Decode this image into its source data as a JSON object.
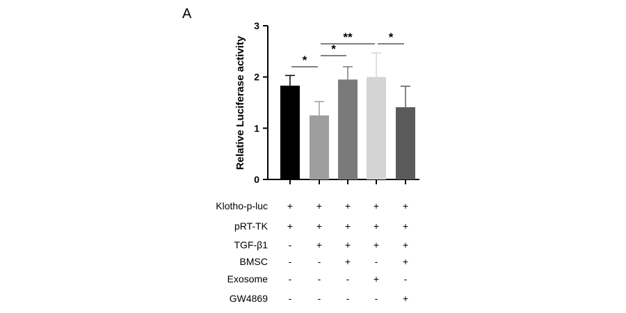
{
  "panel_label": "A",
  "chart_data": {
    "type": "bar",
    "title": "",
    "ylabel": "Relative Luciferase activity",
    "xlabel": "",
    "ylim": [
      0,
      3
    ],
    "yticks": [
      "0",
      "1",
      "2",
      "3"
    ],
    "grid": false,
    "values": [
      1.83,
      1.25,
      1.95,
      2.0,
      1.41
    ],
    "errors": [
      0.2,
      0.27,
      0.25,
      0.47,
      0.41
    ],
    "colors": [
      "#000000",
      "#9e9e9e",
      "#7a7a7a",
      "#d4d4d4",
      "#5a5a5a"
    ],
    "significance": [
      {
        "from": 0,
        "to": 1,
        "label": "*"
      },
      {
        "from": 1,
        "to": 2,
        "label": "*"
      },
      {
        "from": 1,
        "to": 3,
        "label": "**"
      },
      {
        "from": 3,
        "to": 4,
        "label": "*"
      }
    ]
  },
  "conditions": {
    "rows": [
      {
        "label": "Klotho-p-luc",
        "values": [
          "+",
          "+",
          "+",
          "+",
          "+"
        ]
      },
      {
        "label": "pRT-TK",
        "values": [
          "+",
          "+",
          "+",
          "+",
          "+"
        ]
      },
      {
        "label": "TGF-β1",
        "values": [
          "-",
          "+",
          "+",
          "+",
          "+"
        ]
      },
      {
        "label": "BMSC",
        "values": [
          "-",
          "-",
          "+",
          "-",
          "+"
        ]
      },
      {
        "label": "Exosome",
        "values": [
          "-",
          "-",
          "-",
          "+",
          "-"
        ]
      },
      {
        "label": "GW4869",
        "values": [
          "-",
          "-",
          "-",
          "-",
          "+"
        ]
      }
    ]
  }
}
